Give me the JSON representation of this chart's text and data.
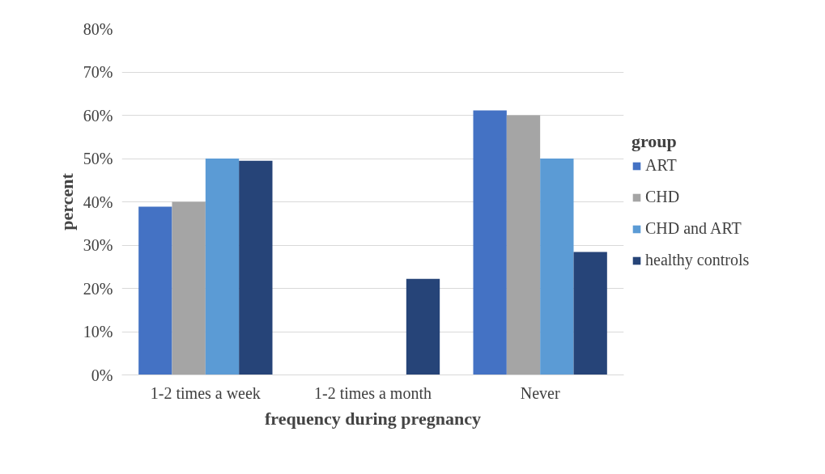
{
  "chart_data": {
    "type": "bar",
    "xlabel": "frequency during pregnancy",
    "ylabel": "percent",
    "legend_title": "group",
    "categories": [
      "1-2 times a week",
      "1-2 times a month",
      "Never"
    ],
    "series": [
      {
        "name": "ART",
        "color": "#4472c4",
        "values": [
          38.9,
          0,
          61.1
        ]
      },
      {
        "name": "CHD",
        "color": "#a5a5a5",
        "values": [
          40,
          0,
          60
        ]
      },
      {
        "name": "CHD and ART",
        "color": "#5b9bd5",
        "values": [
          50,
          0,
          50
        ]
      },
      {
        "name": "healthy controls",
        "color": "#264478",
        "values": [
          49.5,
          22.2,
          28.4
        ]
      }
    ],
    "ylim": [
      0,
      80
    ],
    "yticks": [
      {
        "value": 0,
        "label": "0%"
      },
      {
        "value": 10,
        "label": "10%"
      },
      {
        "value": 20,
        "label": "20%"
      },
      {
        "value": 30,
        "label": "30%"
      },
      {
        "value": 40,
        "label": "40%"
      },
      {
        "value": 50,
        "label": "50%"
      },
      {
        "value": 60,
        "label": "60%"
      },
      {
        "value": 70,
        "label": "70%"
      },
      {
        "value": 80,
        "label": "80%"
      }
    ],
    "grid": "y",
    "legend": "right"
  }
}
